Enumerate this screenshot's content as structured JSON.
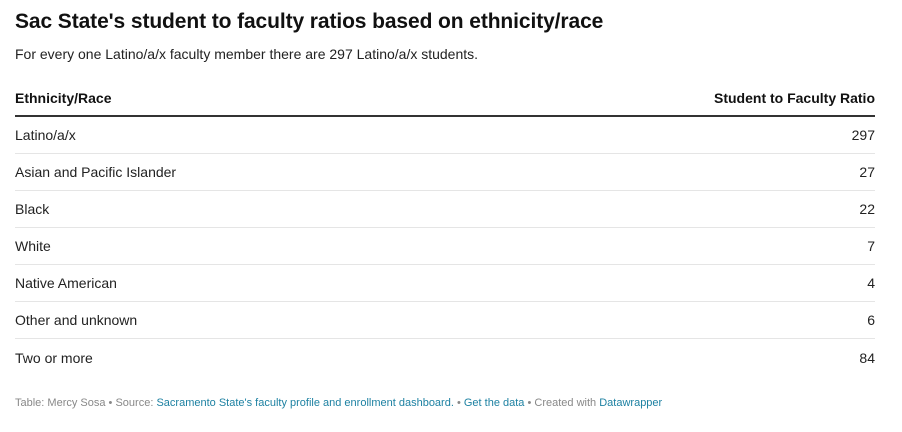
{
  "chart_data": {
    "type": "table",
    "title": "Sac State's student to faculty ratios based on ethnicity/race",
    "subtitle": "For every one Latino/a/x faculty member there are 297 Latino/a/x students.",
    "columns": [
      "Ethnicity/Race",
      "Student to Faculty Ratio"
    ],
    "rows": [
      {
        "label": "Latino/a/x",
        "value": "297"
      },
      {
        "label": "Asian and Pacific Islander",
        "value": "27"
      },
      {
        "label": "Black",
        "value": "22"
      },
      {
        "label": "White",
        "value": "7"
      },
      {
        "label": "Native American",
        "value": "4"
      },
      {
        "label": "Other and unknown",
        "value": "6"
      },
      {
        "label": "Two or more",
        "value": "84"
      }
    ]
  },
  "footer": {
    "table_by": "Table: Mercy Sosa",
    "source_prefix": "Source:",
    "source_link": "Sacramento State's faculty profile and enrollment dashboard.",
    "get_data": "Get the data",
    "created_with": "Created with",
    "datawrapper": "Datawrapper",
    "separator": "•"
  },
  "colors": {
    "link": "#1d81a2",
    "rule": "#333333",
    "row_divider": "#e5e5e5"
  }
}
